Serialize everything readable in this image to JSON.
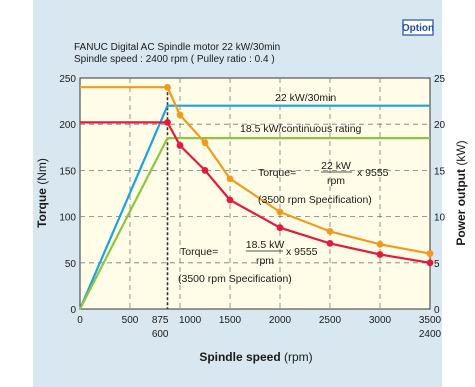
{
  "chart_data": {
    "type": "line",
    "badge": "Option",
    "title": "FANUC Digital AC Spindle motor 22 kW/30min",
    "subtitle": "Spindle speed : 2400 rpm ( Pulley ratio : 0.4 )",
    "xlabel": {
      "bold": "Spindle speed",
      "unit": " (rpm)"
    },
    "ylabel_left": {
      "bold": "Torque",
      "unit": " (Nm)"
    },
    "ylabel_right": {
      "bold": "Power output",
      "unit": " (kW)"
    },
    "xlim": [
      0,
      3500
    ],
    "ylim_left": [
      0,
      250
    ],
    "ylim_right": [
      0,
      25
    ],
    "x_ticks": [
      {
        "v": 0,
        "label": "0",
        "sub": ""
      },
      {
        "v": 500,
        "label": "500",
        "sub": ""
      },
      {
        "v": 875,
        "label": "875",
        "sub": "600"
      },
      {
        "v": 1000,
        "label": "1000",
        "sub": ""
      },
      {
        "v": 1500,
        "label": "1500",
        "sub": ""
      },
      {
        "v": 2000,
        "label": "2000",
        "sub": ""
      },
      {
        "v": 2500,
        "label": "2500",
        "sub": ""
      },
      {
        "v": 3000,
        "label": "3000",
        "sub": ""
      },
      {
        "v": 3500,
        "label": "3500",
        "sub": "2400"
      }
    ],
    "y_ticks_left": [
      "0",
      "50",
      "100",
      "150",
      "200",
      "250"
    ],
    "y_ticks_right": [
      "0",
      "5",
      "10",
      "15",
      "20",
      "25"
    ],
    "grid": true,
    "series": [
      {
        "name": "22 kW/30min",
        "axis": "right",
        "color": "#1aa3e0",
        "points": [
          [
            0,
            0
          ],
          [
            875,
            22
          ],
          [
            3500,
            22
          ]
        ]
      },
      {
        "name": "18.5 kW/continuous rating",
        "axis": "right",
        "color": "#8cc63f",
        "points": [
          [
            0,
            0
          ],
          [
            875,
            18.5
          ],
          [
            3500,
            18.5
          ]
        ]
      },
      {
        "name": "",
        "axis": "left",
        "color": "#f39a1e",
        "markers": true,
        "points": [
          [
            0,
            240
          ],
          [
            875,
            240
          ],
          [
            875,
            240
          ],
          [
            1000,
            210
          ],
          [
            1250,
            180
          ],
          [
            1500,
            141
          ],
          [
            2000,
            105
          ],
          [
            2500,
            84
          ],
          [
            3000,
            70
          ],
          [
            3500,
            60
          ]
        ]
      },
      {
        "name": "",
        "axis": "left",
        "color": "#e6193c",
        "markers": true,
        "points": [
          [
            0,
            202
          ],
          [
            875,
            202
          ],
          [
            875,
            202
          ],
          [
            1000,
            177
          ],
          [
            1250,
            150
          ],
          [
            1500,
            118
          ],
          [
            2000,
            88
          ],
          [
            2500,
            71
          ],
          [
            3000,
            59
          ],
          [
            3500,
            50
          ]
        ]
      }
    ],
    "annotations": {
      "formula1": {
        "prefix": "Torque=",
        "num": "22 kW",
        "den": "rpm",
        "suffix": "x 9555",
        "spec": "(3500 rpm Specification)"
      },
      "formula2": {
        "prefix": "Torque=",
        "num": "18.5 kW",
        "den": "rpm",
        "suffix": "x 9555",
        "spec": "(3500 rpm Specification)"
      }
    }
  }
}
